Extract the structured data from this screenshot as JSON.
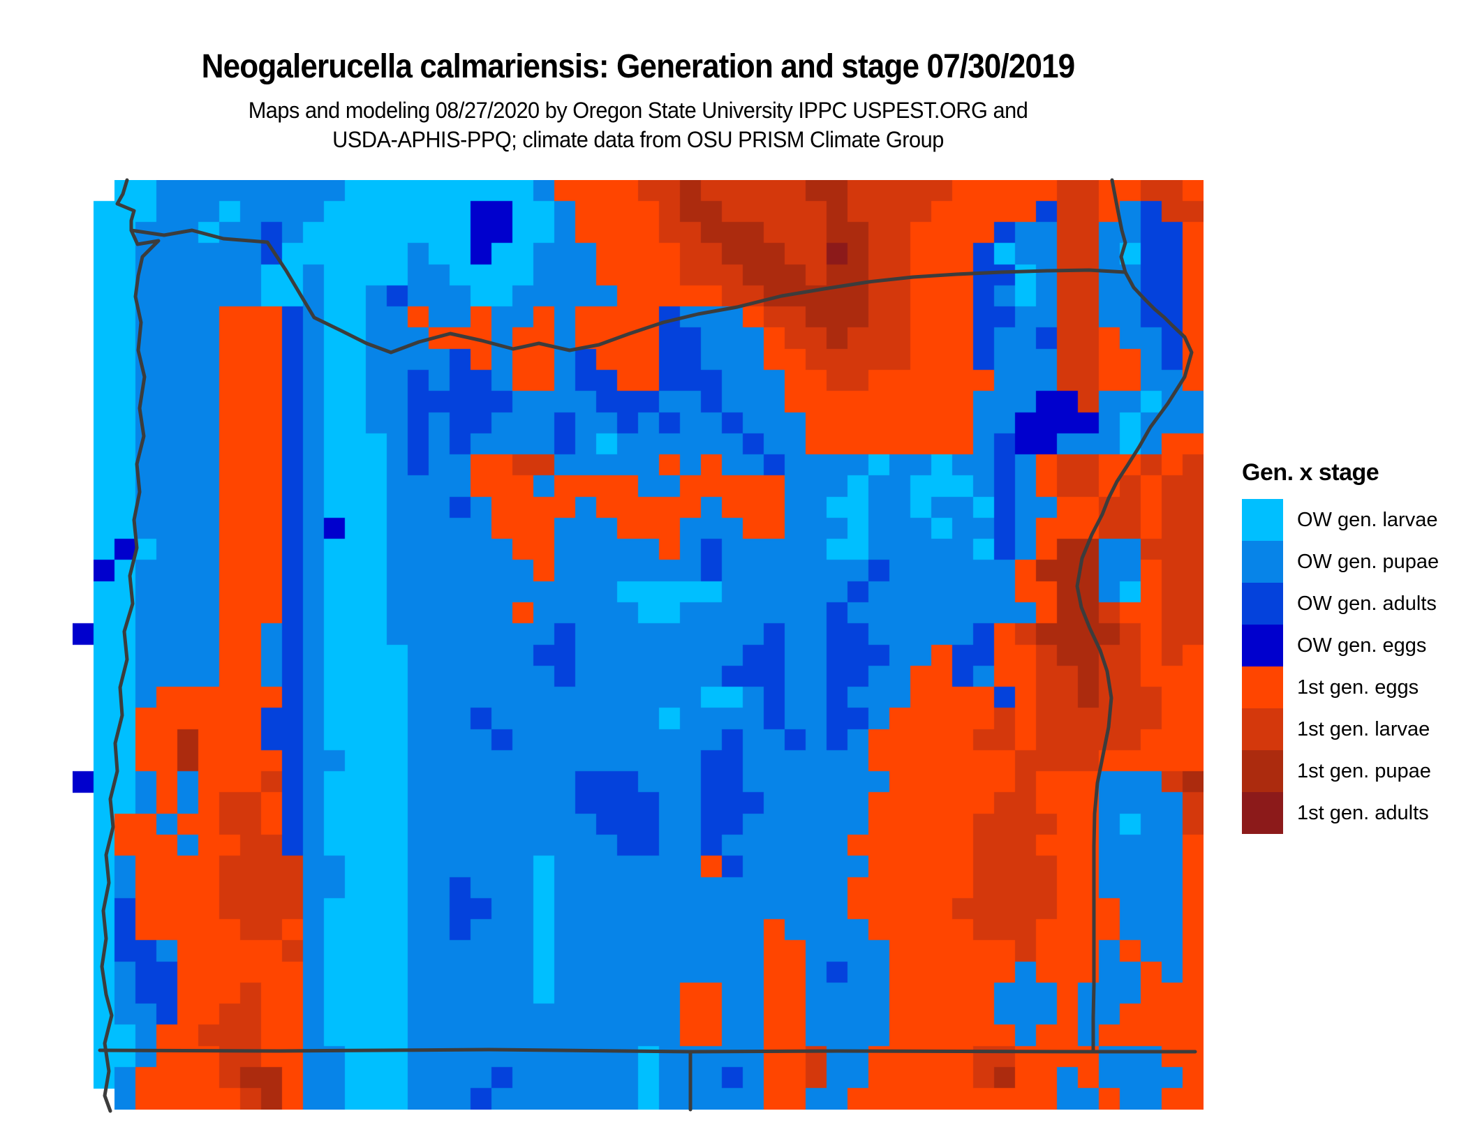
{
  "header": {
    "title": "Neogalerucella calmariensis: Generation and stage 07/30/2019",
    "subtitle_line1": "Maps and modeling 08/27/2020 by Oregon State University IPPC USPEST.ORG and",
    "subtitle_line2": "USDA-APHIS-PPQ; climate data from OSU PRISM Climate Group"
  },
  "legend": {
    "title": "Gen. x stage",
    "items": [
      {
        "label": "OW gen. larvae",
        "color": "#00BFFF",
        "key": "a"
      },
      {
        "label": "OW gen. pupae",
        "color": "#0784E8",
        "key": "b"
      },
      {
        "label": "OW gen. adults",
        "color": "#0442DC",
        "key": "c"
      },
      {
        "label": "OW gen. eggs",
        "color": "#0000CD",
        "key": "d"
      },
      {
        "label": "1st gen. eggs",
        "color": "#FF4500",
        "key": "e"
      },
      {
        "label": "1st gen. larvae",
        "color": "#D4380C",
        "key": "f"
      },
      {
        "label": "1st gen. pupae",
        "color": "#AC2B0E",
        "key": "g"
      },
      {
        "label": "1st gen. adults",
        "color": "#8C1A1A",
        "key": "h"
      }
    ]
  },
  "chart_data": {
    "type": "heatmap",
    "title": "Neogalerucella calmariensis generation and life stage on 07/30/2019 across Oregon and surrounding states",
    "legend_title": "Gen. x stage",
    "categories": [
      "OW gen. larvae",
      "OW gen. pupae",
      "OW gen. adults",
      "OW gen. eggs",
      "1st gen. eggs",
      "1st gen. larvae",
      "1st gen. pupae",
      "1st gen. adults"
    ],
    "palette": {
      "a": "#00BFFF",
      "b": "#0784E8",
      "c": "#0442DC",
      "d": "#0000CD",
      "e": "#FF4500",
      "f": "#D4380C",
      "g": "#AC2B0E",
      "h": "#8C1A1A",
      ".": null
    },
    "cols": 54,
    "rows": 44,
    "grid": [
      [
        "..aabb",
        "bbbbbb",
        "baaaaa",
        "aaaabe",
        "eeeffg",
        "fffffg",
        "gfffff",
        "eeeeef",
        "feeffe"
      ],
      [
        ".aaabb",
        "babbbb",
        "aaaaaa",
        "addaab",
        "eeeefg",
        "gfffff",
        "gffffe",
        "eeeecf",
        "febcff"
      ],
      [
        ".aabbb",
        "abbcba",
        "aaaaaa",
        "addaab",
        "eeeeff",
        "gggfff",
        "ggffee",
        "eecbbf",
        "fbbcce"
      ],
      [
        ".aabbb",
        "bbbcaa",
        "aaaaba",
        "adaabb",
        "beeeef",
        "fgggff",
        "hgffee",
        "ecabbf",
        "fbacce"
      ],
      [
        ".aabbb",
        "bbbaab",
        "aaaabb",
        "aaaabb",
        "beeeef",
        "ffgggf",
        "ggffee",
        "eccabf",
        "fbbcce"
      ],
      [
        ".aabbb",
        "bbbaab",
        "aabcbb",
        "baabbb",
        "bbeeee",
        "effggg",
        "ggffee",
        "ecbabf",
        "fbbcce"
      ],
      [
        ".aabbb",
        "beeecb",
        "aabbeb",
        "bebbeb",
        "eeeecb",
        "bbeffg",
        "ggffee",
        "eccbbf",
        "fbbcce"
      ],
      [
        ".aabbb",
        "beeecb",
        "aabbbe",
        "eebeeb",
        "eeeecc",
        "bbbeff",
        "gfffee",
        "ecbbcf",
        "febbce"
      ],
      [
        ".aabbb",
        "beeecb",
        "aabbbb",
        "cebeeb",
        "ceeecc",
        "bbbeef",
        "ffffee",
        "ecbbbf",
        "feebce"
      ],
      [
        ".aabbb",
        "beeecb",
        "aabbcb",
        "ccbeeb",
        "cceecc",
        "cbbbee",
        "ffeeee",
        "eebbbf",
        "feebbe"
      ],
      [
        ".aabbb",
        "beeecb",
        "aabbcc",
        "cccbbb",
        "bcccbb",
        "cbbbee",
        "eeeeee",
        "ebbbdd",
        "fbbabb"
      ],
      [
        ".aabbb",
        "beeecb",
        "aabbcb",
        "ccbbbc",
        "bbcbcb",
        "bcbbbe",
        "eeeeee",
        "ebbddd",
        "dbabbb"
      ],
      [
        ".aabbb",
        "beeecb",
        "aaabcb",
        "cbbbbc",
        "babbbb",
        "bbcbbe",
        "eeeeee",
        "ebcddb",
        "bbabee"
      ],
      [
        ".aabbb",
        "beeecb",
        "aaabcb",
        "beeffb",
        "bbbbeb",
        "ebbcbb",
        "bbabba",
        "bbcbef",
        "feefef"
      ],
      [
        ".aabbb",
        "beeecb",
        "aaabbb",
        "beeebe",
        "eeebbe",
        "eeeebb",
        "babbaa",
        "abcbef",
        "fefeff"
      ],
      [
        ".aabbb",
        "beeecb",
        "aaabbb",
        "cbeeee",
        "beeeee",
        "beeebb",
        "aabbab",
        "bacbbe",
        "effeff"
      ],
      [
        ".aabbb",
        "beeecb",
        "daabbb",
        "bbeeeb",
        "bbeeeb",
        "bbeebb",
        "babbba",
        "bbcbee",
        "effeff"
      ],
      [
        ".adabb",
        "beeecb",
        "aaabbb",
        "bbbeeb",
        "bbbbeb",
        "cbbbbb",
        "aabbbb",
        "bacbeg",
        "gbbfff"
      ],
      [
        ".dabbb",
        "beeecb",
        "aaabbb",
        "bbbbeb",
        "bbbbbb",
        "cbbbbb",
        "bbcbbb",
        "bbbegg",
        "gbbeff"
      ],
      [
        ".aabbb",
        "beeecb",
        "aaabbb",
        "bbbbbb",
        "bbaaaa",
        "abbbbb",
        "bcbbbb",
        "bbbeeg",
        "gbaeff"
      ],
      [
        ".aabbb",
        "beeecb",
        "aaabbb",
        "bbbebb",
        "bbbaab",
        "bbbbbb",
        "cbbbbb",
        "bbbbeg",
        "gfeeff"
      ],
      [
        "daabbb",
        "beebcb",
        "aaabbb",
        "bbbbbc",
        "bbbbbb",
        "bbbcbb",
        "ccbbbb",
        "bcefgg",
        "ggfeff"
      ],
      [
        ".aabbb",
        "beebcb",
        "aaaabb",
        "bbbbcc",
        "bbbbbb",
        "bbccbb",
        "cccbbe",
        "cceefg",
        "gffefe"
      ],
      [
        ".aabbb",
        "beebcb",
        "aaaabb",
        "bbbbbc",
        "bbbbbb",
        "bcccbb",
        "ccbbee",
        "cbeeff",
        "gffeee"
      ],
      [
        ".aabee",
        "eeeecb",
        "aaaabb",
        "bbbbbb",
        "bbbbbb",
        "aabcbb",
        "cbbbee",
        "eeceff",
        "gfffee"
      ],
      [
        ".aaeee",
        "eeeccb",
        "aaaabb",
        "bcbbbb",
        "bbbbab",
        "bbbcbb",
        "ccbeee",
        "eefeff",
        "ffffee"
      ],
      [
        ".aaeeg",
        "eeeccb",
        "aaaabb",
        "bbcbbb",
        "bbbbbb",
        "bcbbcb",
        "cbeeee",
        "effeff",
        "fffeee"
      ],
      [
        ".aaeeg",
        "eeeecb",
        "baaabb",
        "bbbbbb",
        "bbbbbb",
        "ccbbbb",
        "bbeeee",
        "eeefff",
        "feeeee"
      ],
      [
        "daabeb",
        "eeefcb",
        "aaaabb",
        "bbbbbb",
        "cccbbb",
        "ccbbbb",
        "bbbeee",
        "eeefee",
        "ebbbfg"
      ],
      [
        ".aabeb",
        "effecb",
        "aaaabb",
        "bbbbbb",
        "ccccbb",
        "cccbbb",
        "bbeeee",
        "eeffee",
        "ebbbbf"
      ],
      [
        ".aeebe",
        "effecb",
        "aaaabb",
        "bbbbbb",
        "bcccbb",
        "ccbbbb",
        "bbeeee",
        "effffe",
        "ebabbf"
      ],
      [
        ".aeeeb",
        "eeffcb",
        "aaaabb",
        "bbbbbb",
        "bbccbb",
        "cbbbbb",
        "beeeee",
        "efffee",
        "ebbbbe"
      ],
      [
        ".abeee",
        "effffb",
        "baaabb",
        "bbbbab",
        "bbbbbb",
        "ecbbbb",
        "bbeeee",
        "effffe",
        "ebbbbe"
      ],
      [
        ".abeee",
        "effffb",
        "baaabb",
        "cbbbab",
        "bbbbbb",
        "bbbbbb",
        "beeeee",
        "effffe",
        "ebbbbe"
      ],
      [
        ".aceee",
        "effffb",
        "aaaabb",
        "ccbbab",
        "bbbbbb",
        "bbbbbb",
        "beeeee",
        "fffffe",
        "eebbbe"
      ],
      [
        ".aceee",
        "eeffeb",
        "aaaabb",
        "cbbbab",
        "bbbbbb",
        "bbbebb",
        "bbeeee",
        "efffee",
        "eebbbe"
      ],
      [
        ".accbe",
        "eeeefb",
        "aaaabb",
        "bbbbab",
        "bbbbbb",
        "bbbeeb",
        "bbbeee",
        "eeefee",
        "ebebbe"
      ],
      [
        ".abcce",
        "eeeeeb",
        "aaaabb",
        "bbbbab",
        "bbbbbb",
        "bbbeeb",
        "cbbeee",
        "eeebee",
        "ebbebe"
      ],
      [
        ".abcce",
        "eefeeb",
        "aaaabb",
        "bbbbab",
        "bbbbbe",
        "ebbeeb",
        "bbbeee",
        "eebbbe",
        "bbbeee"
      ],
      [
        ".abbce",
        "effeeb",
        "aaaabb",
        "bbbbbb",
        "bbbbbe",
        "ebbeeb",
        "bbbeee",
        "eebbbe",
        "bbeeee"
      ],
      [
        ".aabee",
        "fffeeb",
        "aaaabb",
        "bbbbbb",
        "bbbbbe",
        "ebbeeb",
        "bbbeee",
        "eeebee",
        "beeeee"
      ],
      [
        ".aabee",
        "effeeb",
        "baaabb",
        "bbbbbb",
        "bbbabb",
        "bbbeef",
        "bbeeee",
        "effeee",
        "ebbbee"
      ],
      [
        ".abeee",
        "efggeb",
        "baaabb",
        "bbcbbb",
        "bbbabb",
        "bcbeef",
        "bbeeee",
        "efgeeb",
        "ebbbbe"
      ],
      [
        "..beee",
        "eefgeb",
        "baaabb",
        "bcbbbb",
        "bbbabb",
        "bbbeeb",
        "beeeee",
        "eeeeeb",
        "bebbee"
      ]
    ],
    "borders": {
      "stroke": "#3C3C3C",
      "stroke_width": 5,
      "paths": {
        "coastline": [
          [
            78,
            0
          ],
          [
            72,
            20
          ],
          [
            64,
            34
          ],
          [
            88,
            44
          ],
          [
            84,
            58
          ],
          [
            84,
            72
          ],
          [
            93,
            92
          ],
          [
            123,
            87
          ],
          [
            100,
            110
          ],
          [
            94,
            137
          ],
          [
            90,
            167
          ],
          [
            98,
            204
          ],
          [
            94,
            244
          ],
          [
            103,
            282
          ],
          [
            96,
            327
          ],
          [
            102,
            367
          ],
          [
            92,
            407
          ],
          [
            96,
            447
          ],
          [
            88,
            487
          ],
          [
            92,
            527
          ],
          [
            82,
            567
          ],
          [
            86,
            607
          ],
          [
            74,
            647
          ],
          [
            78,
            687
          ],
          [
            68,
            727
          ],
          [
            71,
            767
          ],
          [
            61,
            807
          ],
          [
            64,
            847
          ],
          [
            54,
            887
          ],
          [
            58,
            927
          ],
          [
            48,
            967
          ],
          [
            52,
            1007
          ],
          [
            44,
            1047
          ],
          [
            48,
            1087
          ],
          [
            42,
            1127
          ],
          [
            48,
            1167
          ],
          [
            56,
            1197
          ],
          [
            46,
            1237
          ],
          [
            52,
            1277
          ],
          [
            46,
            1312
          ],
          [
            54,
            1334
          ]
        ],
        "wa_or_border": [
          [
            84,
            72
          ],
          [
            131,
            79
          ],
          [
            171,
            72
          ],
          [
            216,
            84
          ],
          [
            279,
            89
          ],
          [
            306,
            130
          ],
          [
            328,
            167
          ],
          [
            346,
            197
          ],
          [
            381,
            214
          ],
          [
            421,
            234
          ],
          [
            456,
            247
          ],
          [
            496,
            232
          ],
          [
            541,
            220
          ],
          [
            586,
            230
          ],
          [
            631,
            242
          ],
          [
            668,
            234
          ],
          [
            712,
            244
          ],
          [
            754,
            236
          ],
          [
            798,
            220
          ],
          [
            846,
            204
          ],
          [
            896,
            192
          ],
          [
            952,
            182
          ],
          [
            1016,
            166
          ],
          [
            1076,
            156
          ],
          [
            1140,
            146
          ],
          [
            1204,
            139
          ],
          [
            1266,
            135
          ],
          [
            1330,
            132
          ],
          [
            1396,
            130
          ],
          [
            1456,
            129
          ],
          [
            1508,
            132
          ]
        ],
        "or_id_border": [
          [
            1489,
            0
          ],
          [
            1496,
            37
          ],
          [
            1503,
            72
          ],
          [
            1508,
            90
          ],
          [
            1502,
            110
          ],
          [
            1508,
            132
          ],
          [
            1520,
            154
          ],
          [
            1537,
            172
          ],
          [
            1550,
            185
          ],
          [
            1564,
            197
          ],
          [
            1576,
            209
          ],
          [
            1593,
            225
          ],
          [
            1603,
            247
          ],
          [
            1593,
            282
          ],
          [
            1569,
            320
          ],
          [
            1544,
            354
          ],
          [
            1528,
            382
          ],
          [
            1511,
            409
          ],
          [
            1496,
            432
          ],
          [
            1484,
            456
          ],
          [
            1475,
            479
          ],
          [
            1460,
            508
          ],
          [
            1446,
            542
          ],
          [
            1439,
            582
          ],
          [
            1445,
            612
          ],
          [
            1457,
            642
          ],
          [
            1472,
            674
          ],
          [
            1482,
            704
          ],
          [
            1488,
            742
          ],
          [
            1484,
            784
          ],
          [
            1476,
            824
          ],
          [
            1468,
            864
          ],
          [
            1464,
            908
          ],
          [
            1463,
            954
          ],
          [
            1463,
            1004
          ],
          [
            1463,
            1054
          ],
          [
            1463,
            1104
          ],
          [
            1463,
            1154
          ],
          [
            1462,
            1200
          ],
          [
            1462,
            1249
          ]
        ],
        "parallel_42n_border": [
          [
            39,
            1247
          ],
          [
            296,
            1248
          ],
          [
            596,
            1246
          ],
          [
            885,
            1249
          ],
          [
            1096,
            1248
          ],
          [
            1462,
            1249
          ],
          [
            1608,
            1249
          ]
        ],
        "ca_nv_border": [
          [
            885,
            1249
          ],
          [
            885,
            1332
          ]
        ]
      }
    }
  }
}
